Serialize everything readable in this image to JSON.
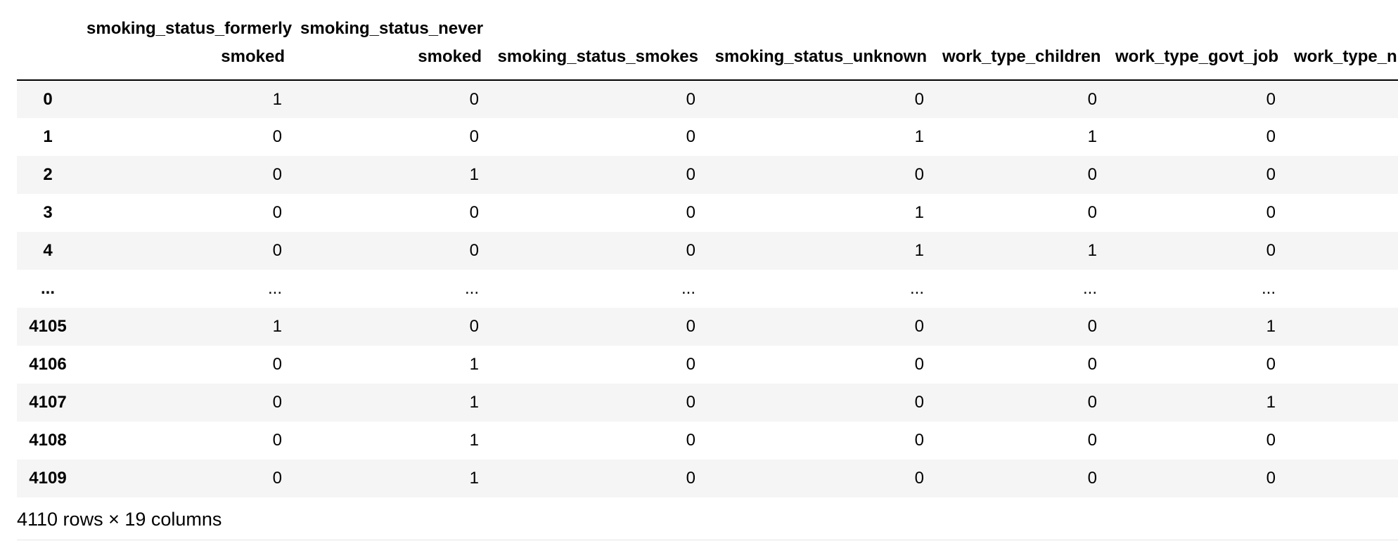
{
  "table": {
    "columns": [
      "smoking_status_formerly smoked",
      "smoking_status_never smoked",
      "smoking_status_smokes",
      "smoking_status_unknown",
      "work_type_children",
      "work_type_govt_job",
      "work_type_n"
    ],
    "rows": [
      {
        "index": "0",
        "cells": [
          "1",
          "0",
          "0",
          "0",
          "0",
          "0",
          ""
        ]
      },
      {
        "index": "1",
        "cells": [
          "0",
          "0",
          "0",
          "1",
          "1",
          "0",
          ""
        ]
      },
      {
        "index": "2",
        "cells": [
          "0",
          "1",
          "0",
          "0",
          "0",
          "0",
          ""
        ]
      },
      {
        "index": "3",
        "cells": [
          "0",
          "0",
          "0",
          "1",
          "0",
          "0",
          ""
        ]
      },
      {
        "index": "4",
        "cells": [
          "0",
          "0",
          "0",
          "1",
          "1",
          "0",
          ""
        ]
      },
      {
        "index": "...",
        "cells": [
          "...",
          "...",
          "...",
          "...",
          "...",
          "...",
          ""
        ]
      },
      {
        "index": "4105",
        "cells": [
          "1",
          "0",
          "0",
          "0",
          "0",
          "1",
          ""
        ]
      },
      {
        "index": "4106",
        "cells": [
          "0",
          "1",
          "0",
          "0",
          "0",
          "0",
          ""
        ]
      },
      {
        "index": "4107",
        "cells": [
          "0",
          "1",
          "0",
          "0",
          "0",
          "1",
          ""
        ]
      },
      {
        "index": "4108",
        "cells": [
          "0",
          "1",
          "0",
          "0",
          "0",
          "0",
          ""
        ]
      },
      {
        "index": "4109",
        "cells": [
          "0",
          "1",
          "0",
          "0",
          "0",
          "0",
          ""
        ]
      }
    ]
  },
  "shape_note": "4110 rows × 19 columns"
}
